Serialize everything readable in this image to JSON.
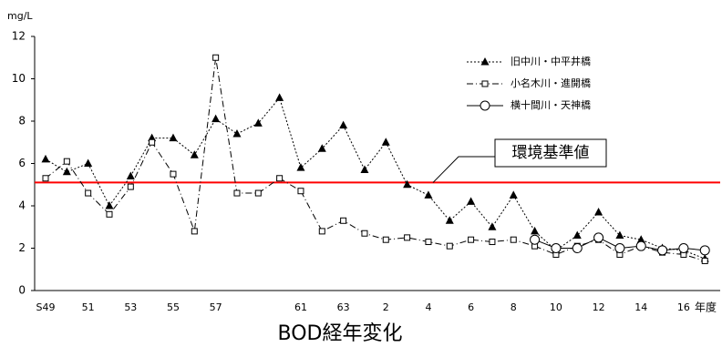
{
  "chart_data": {
    "type": "line",
    "title": "BOD経年変化",
    "y_label": "mg/L",
    "x_label": "年度",
    "categories": [
      "S49",
      null,
      "51",
      null,
      "53",
      null,
      "55",
      null,
      "57",
      null,
      null,
      null,
      "61",
      null,
      "63",
      null,
      "2",
      null,
      "4",
      null,
      "6",
      null,
      "8",
      null,
      "10",
      null,
      "12",
      null,
      "14",
      null,
      "16",
      null
    ],
    "series": [
      {
        "name": "旧中川・中平井橋",
        "color": "#000000",
        "marker": "triangle",
        "linestyle": "dotted",
        "values": [
          6.2,
          5.6,
          6.0,
          4.0,
          5.4,
          7.2,
          7.2,
          6.4,
          8.1,
          7.4,
          7.9,
          9.1,
          5.8,
          6.7,
          7.8,
          5.7,
          7.0,
          5.0,
          4.5,
          3.3,
          4.2,
          3.0,
          4.5,
          2.8,
          1.9,
          2.6,
          3.7,
          2.6,
          2.4,
          2.0,
          1.9,
          1.5
        ]
      },
      {
        "name": "小名木川・進開橋",
        "color": "#000000",
        "marker": "square",
        "linestyle": "dashdot",
        "values": [
          5.3,
          6.1,
          4.6,
          3.6,
          4.9,
          7.0,
          5.5,
          2.8,
          11.0,
          4.6,
          4.6,
          5.3,
          4.7,
          2.8,
          3.3,
          2.7,
          2.4,
          2.5,
          2.3,
          2.1,
          2.4,
          2.3,
          2.4,
          2.1,
          1.7,
          2.1,
          2.4,
          1.7,
          2.1,
          1.8,
          1.7,
          1.4
        ]
      },
      {
        "name": "横十間川・天神橋",
        "color": "#000000",
        "marker": "circle",
        "linestyle": "solid",
        "values": [
          null,
          null,
          null,
          null,
          null,
          null,
          null,
          null,
          null,
          null,
          null,
          null,
          null,
          null,
          null,
          null,
          null,
          null,
          null,
          null,
          null,
          null,
          null,
          2.4,
          2.0,
          2.0,
          2.5,
          2.0,
          2.1,
          1.9,
          2.0,
          1.9
        ]
      }
    ],
    "reference_line": {
      "value": 5.1,
      "label": "環境基準値",
      "color": "#ff0000"
    },
    "ylim": [
      0,
      12
    ],
    "yticks": [
      0,
      2,
      4,
      6,
      8,
      10,
      12
    ],
    "grid": false,
    "legend": "upper right"
  }
}
